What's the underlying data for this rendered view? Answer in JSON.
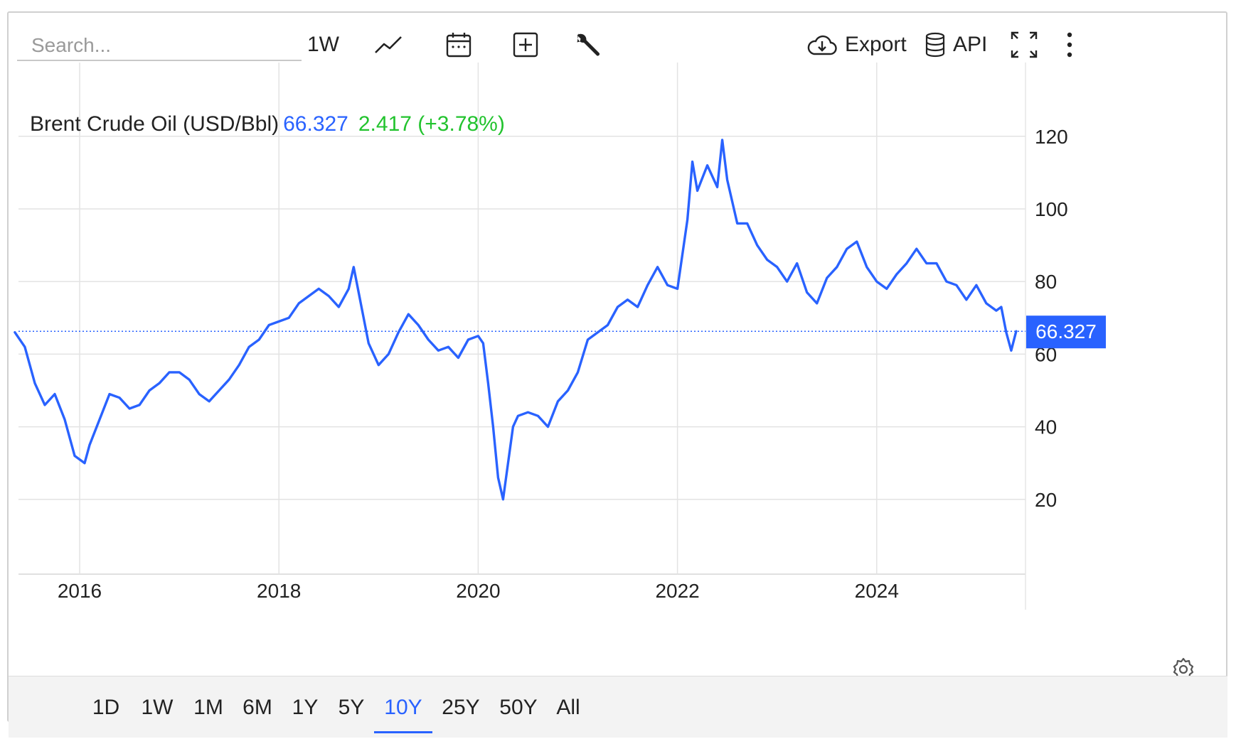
{
  "search": {
    "placeholder": "Search..."
  },
  "toolbar": {
    "interval_label": "1W",
    "export_label": "Export",
    "api_label": "API"
  },
  "legend": {
    "name": "Brent Crude Oil (USD/Bbl)",
    "price": "66.327",
    "change": "2.417 (+3.78%)"
  },
  "ranges": [
    "1D",
    "1W",
    "1M",
    "6M",
    "1Y",
    "5Y",
    "10Y",
    "25Y",
    "50Y",
    "All"
  ],
  "active_range": "10Y",
  "colors": {
    "line": "#2962ff",
    "positive": "#22c32e",
    "grid": "#e3e3e3",
    "badge": "#2962ff"
  },
  "icons": [
    "line-chart-icon",
    "calendar-icon",
    "add-compare-icon",
    "wrench-icon",
    "cloud-download-icon",
    "database-icon",
    "fullscreen-icon",
    "more-vertical-icon",
    "settings-gear-icon"
  ],
  "chart_data": {
    "type": "line",
    "title": "Brent Crude Oil (USD/Bbl)",
    "xlabel": "",
    "ylabel": "",
    "xlim": [
      2015.35,
      2025.4
    ],
    "ylim": [
      0,
      120
    ],
    "grid": true,
    "x_ticks": [
      "2016",
      "2018",
      "2020",
      "2022",
      "2024"
    ],
    "y_ticks": [
      "20",
      "40",
      "60",
      "80",
      "100",
      "120"
    ],
    "last_value_label": "66.327",
    "series": [
      {
        "name": "Brent Crude Oil",
        "x": [
          2015.35,
          2015.45,
          2015.55,
          2015.65,
          2015.75,
          2015.85,
          2015.95,
          2016.05,
          2016.1,
          2016.2,
          2016.3,
          2016.4,
          2016.5,
          2016.6,
          2016.7,
          2016.8,
          2016.9,
          2017.0,
          2017.1,
          2017.2,
          2017.3,
          2017.4,
          2017.5,
          2017.6,
          2017.7,
          2017.8,
          2017.9,
          2018.0,
          2018.1,
          2018.2,
          2018.3,
          2018.4,
          2018.5,
          2018.6,
          2018.7,
          2018.75,
          2018.8,
          2018.9,
          2019.0,
          2019.1,
          2019.2,
          2019.3,
          2019.4,
          2019.5,
          2019.6,
          2019.7,
          2019.8,
          2019.9,
          2020.0,
          2020.05,
          2020.1,
          2020.15,
          2020.2,
          2020.25,
          2020.3,
          2020.35,
          2020.4,
          2020.5,
          2020.6,
          2020.7,
          2020.8,
          2020.9,
          2021.0,
          2021.1,
          2021.2,
          2021.3,
          2021.4,
          2021.5,
          2021.6,
          2021.7,
          2021.8,
          2021.9,
          2022.0,
          2022.1,
          2022.15,
          2022.2,
          2022.3,
          2022.4,
          2022.45,
          2022.5,
          2022.6,
          2022.7,
          2022.8,
          2022.9,
          2023.0,
          2023.1,
          2023.2,
          2023.3,
          2023.4,
          2023.5,
          2023.6,
          2023.7,
          2023.8,
          2023.9,
          2024.0,
          2024.1,
          2024.2,
          2024.3,
          2024.4,
          2024.5,
          2024.6,
          2024.7,
          2024.8,
          2024.9,
          2025.0,
          2025.1,
          2025.2,
          2025.25,
          2025.3,
          2025.35,
          2025.4
        ],
        "values": [
          66,
          62,
          52,
          46,
          49,
          42,
          32,
          30,
          35,
          42,
          49,
          48,
          45,
          46,
          50,
          52,
          55,
          55,
          53,
          49,
          47,
          50,
          53,
          57,
          62,
          64,
          68,
          69,
          70,
          74,
          76,
          78,
          76,
          73,
          78,
          84,
          77,
          63,
          57,
          60,
          66,
          71,
          68,
          64,
          61,
          62,
          59,
          64,
          65,
          63,
          52,
          40,
          26,
          20,
          30,
          40,
          43,
          44,
          43,
          40,
          47,
          50,
          55,
          64,
          66,
          68,
          73,
          75,
          73,
          79,
          84,
          79,
          78,
          97,
          113,
          105,
          112,
          106,
          119,
          108,
          96,
          96,
          90,
          86,
          84,
          80,
          85,
          77,
          74,
          81,
          84,
          89,
          91,
          84,
          80,
          78,
          82,
          85,
          89,
          85,
          85,
          80,
          79,
          75,
          79,
          74,
          72,
          73,
          66,
          61,
          66.3
        ]
      }
    ]
  }
}
